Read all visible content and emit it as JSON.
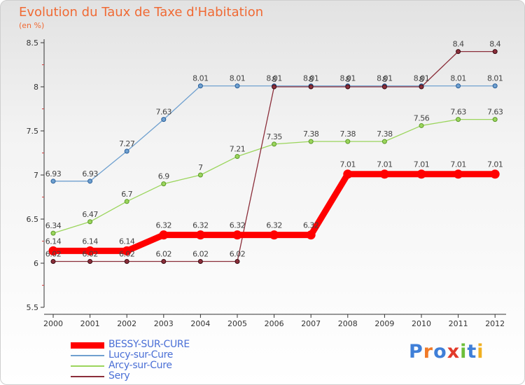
{
  "chart_data": {
    "type": "line",
    "title": "Evolution du Taux de Taxe d'Habitation",
    "subtitle": "(en %)",
    "x": [
      "2000",
      "2001",
      "2002",
      "2003",
      "2004",
      "2005",
      "2006",
      "2007",
      "2008",
      "2009",
      "2010",
      "2011",
      "2012"
    ],
    "ylim": [
      5.5,
      8.5
    ],
    "yticks": [
      "5.5",
      "6",
      "6.5",
      "7",
      "7.5",
      "8",
      "8.5"
    ],
    "grid": false,
    "legend_position": "bottom-left",
    "series": [
      {
        "name": "BESSY-SUR-CURE",
        "color": "#ff0000",
        "values": [
          6.14,
          6.14,
          6.14,
          6.32,
          6.32,
          6.32,
          6.32,
          6.32,
          7.01,
          7.01,
          7.01,
          7.01,
          7.01
        ],
        "labels": [
          "6.14",
          "6.14",
          "6.14",
          "6.32",
          "6.32",
          "6.32",
          "6.32",
          "6.32",
          "7.01",
          "7.01",
          "7.01",
          "7.01",
          "7.01"
        ]
      },
      {
        "name": "Lucy-sur-Cure",
        "color": "#6fa0cf",
        "values": [
          6.93,
          6.93,
          7.27,
          7.63,
          8.01,
          8.01,
          8.01,
          8.01,
          8.01,
          8.01,
          8.01,
          8.01,
          8.01
        ],
        "labels": [
          "6.93",
          "6.93",
          "7.27",
          "7.63",
          "8.01",
          "8.01",
          "8.01",
          "8.01",
          "8.01",
          "8.01",
          "8.01",
          "8.01",
          "8.01"
        ]
      },
      {
        "name": "Arcy-sur-Cure",
        "color": "#9bd55c",
        "values": [
          6.34,
          6.47,
          6.7,
          6.9,
          7.0,
          7.21,
          7.35,
          7.38,
          7.38,
          7.38,
          7.56,
          7.63,
          7.63
        ],
        "labels": [
          "6.34",
          "6.47",
          "6.7",
          "6.9",
          "7",
          "7.21",
          "7.35",
          "7.38",
          "7.38",
          "7.38",
          "7.56",
          "7.63",
          "7.63"
        ]
      },
      {
        "name": "Sery",
        "color": "#8b2e3a",
        "values": [
          6.02,
          6.02,
          6.02,
          6.02,
          6.02,
          6.02,
          8.0,
          8.0,
          8.0,
          8.0,
          8.0,
          8.4,
          8.4
        ],
        "labels": [
          "6.02",
          "6.02",
          "6.02",
          "6.02",
          "6.02",
          "6.02",
          "8",
          "8",
          "8",
          "8",
          "8",
          "8.4",
          "8.4"
        ]
      }
    ]
  },
  "logo": {
    "text": "Proxiti",
    "colors": [
      "#3f7fd8",
      "#f07a28",
      "#3f7fd8",
      "#e23a2a",
      "#6dbf3a",
      "#3f7fd8",
      "#f0b020"
    ]
  }
}
